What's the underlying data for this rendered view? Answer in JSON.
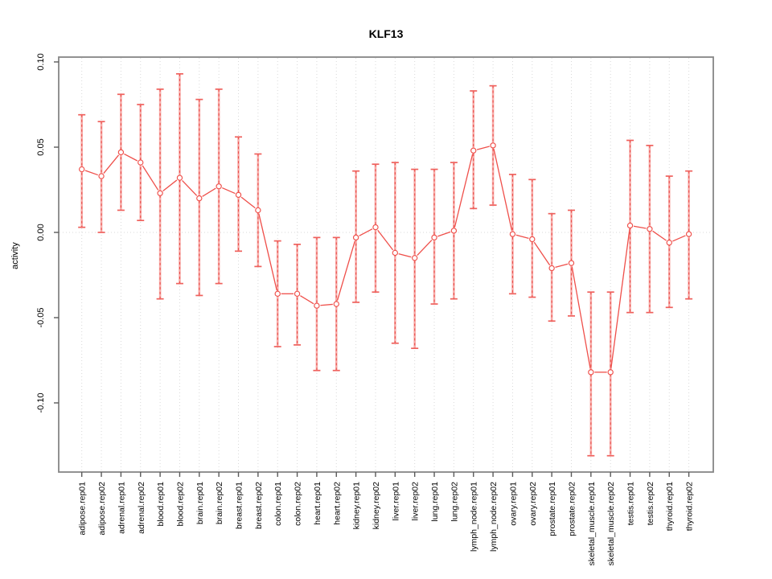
{
  "figure": {
    "background": "#ffffff"
  },
  "chart_data": {
    "type": "line",
    "subtype": "points-with-error-bars",
    "title": "KLF13",
    "xlabel": "",
    "ylabel": "activity",
    "legend": "none",
    "grid": {
      "vertical": "dotted line at each category",
      "horizontal": "dotted line at y=0 only"
    },
    "ylim": [
      -0.141,
      0.102
    ],
    "yticks": {
      "values": [
        0.1,
        0.05,
        0.0,
        -0.05,
        -0.1
      ],
      "labels": [
        "0.10",
        "0.05",
        "0.00",
        "-0.05",
        "-0.10"
      ]
    },
    "categories": [
      "adipose.rep01",
      "adipose.rep02",
      "adrenal.rep01",
      "adrenal.rep02",
      "blood.rep01",
      "blood.rep02",
      "brain.rep01",
      "brain.rep02",
      "breast.rep01",
      "breast.rep02",
      "colon.rep01",
      "colon.rep02",
      "heart.rep01",
      "heart.rep02",
      "kidney.rep01",
      "kidney.rep02",
      "liver.rep01",
      "liver.rep02",
      "lung.rep01",
      "lung.rep02",
      "lymph_node.rep01",
      "lymph_node.rep02",
      "ovary.rep01",
      "ovary.rep02",
      "prostate.rep01",
      "prostate.rep02",
      "skeletal_muscle.rep01",
      "skeletal_muscle.rep02",
      "testis.rep01",
      "testis.rep02",
      "thyroid.rep01",
      "thyroid.rep02"
    ],
    "series": [
      {
        "name": "activity",
        "values": [
          0.037,
          0.033,
          0.047,
          0.041,
          0.023,
          0.032,
          0.02,
          0.027,
          0.022,
          0.013,
          -0.036,
          -0.036,
          -0.043,
          -0.042,
          -0.003,
          0.003,
          -0.012,
          -0.015,
          -0.003,
          0.001,
          0.048,
          0.051,
          -0.001,
          -0.004,
          -0.021,
          -0.018,
          -0.082,
          -0.082,
          0.004,
          0.002,
          -0.006,
          -0.001
        ],
        "error_low": [
          0.003,
          0.0,
          0.013,
          0.007,
          -0.039,
          -0.03,
          -0.037,
          -0.03,
          -0.011,
          -0.02,
          -0.067,
          -0.066,
          -0.081,
          -0.081,
          -0.041,
          -0.035,
          -0.065,
          -0.068,
          -0.042,
          -0.039,
          0.014,
          0.016,
          -0.036,
          -0.038,
          -0.052,
          -0.049,
          -0.131,
          -0.131,
          -0.047,
          -0.047,
          -0.044,
          -0.039
        ],
        "error_high": [
          0.069,
          0.065,
          0.081,
          0.075,
          0.084,
          0.093,
          0.078,
          0.084,
          0.056,
          0.046,
          -0.005,
          -0.007,
          -0.003,
          -0.003,
          0.036,
          0.04,
          0.041,
          0.037,
          0.037,
          0.041,
          0.083,
          0.086,
          0.034,
          0.031,
          0.011,
          0.013,
          -0.035,
          -0.035,
          0.054,
          0.051,
          0.033,
          0.036
        ]
      }
    ],
    "colors": {
      "point": "#ef4f4a",
      "connector": "#ef4f4a",
      "error_bar_fill": "#f5918e",
      "error_bar_dash": "#e8413d",
      "error_bar_cap": "#ef615d",
      "gridline": "#d9d9d9",
      "plot_border": "#868686",
      "tick": "#5a5a5a",
      "text": "#000000"
    }
  }
}
